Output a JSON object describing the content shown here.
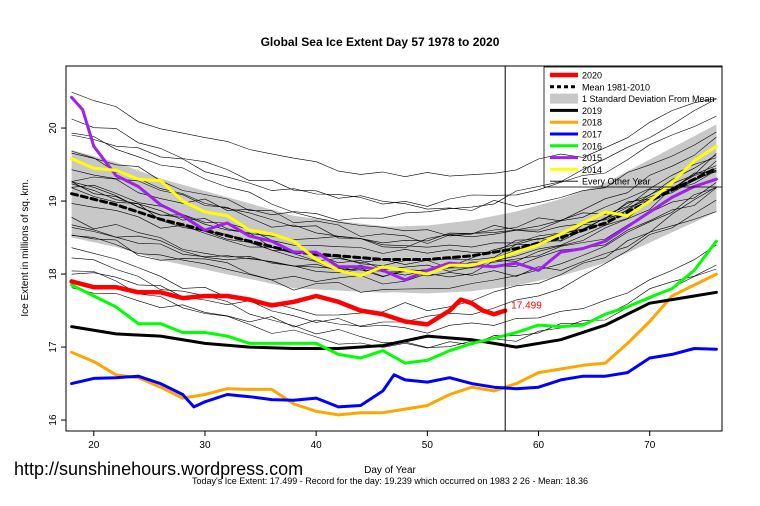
{
  "chart_data": {
    "type": "line",
    "title": "Global Sea Ice Extent Day 57 1978 to 2020",
    "xlabel": "Day of Year",
    "ylabel": "Ice Extent in millions of sq. km.",
    "xlim": [
      17.5,
      76.5
    ],
    "ylim": [
      15.85,
      20.85
    ],
    "xticks": [
      20,
      30,
      40,
      50,
      60,
      70
    ],
    "yticks": [
      16,
      17,
      18,
      19,
      20
    ],
    "vline_day": 57,
    "current_value_label": "17.499",
    "legend_position": "top-right",
    "legend": [
      {
        "label": "2020",
        "color": "#ff0000",
        "style": "solid-thick"
      },
      {
        "label": "Mean 1981-2010",
        "color": "#000000",
        "style": "dashed"
      },
      {
        "label": "1 Standard Deviation From Mean",
        "color": "#c8c8c8",
        "style": "band"
      },
      {
        "label": "2019",
        "color": "#000000",
        "style": "solid"
      },
      {
        "label": "2018",
        "color": "#ffa500",
        "style": "solid"
      },
      {
        "label": "2017",
        "color": "#0000ff",
        "style": "solid"
      },
      {
        "label": "2016",
        "color": "#00ff00",
        "style": "solid"
      },
      {
        "label": "2015",
        "color": "#a020f0",
        "style": "solid"
      },
      {
        "label": "2014",
        "color": "#ffff00",
        "style": "solid"
      },
      {
        "label": "Every Other Year",
        "color": "#000000",
        "style": "thin"
      }
    ],
    "series": [
      {
        "name": "2020",
        "color": "#ff0000",
        "width": 4.5,
        "points": [
          [
            18,
            17.9
          ],
          [
            20,
            17.82
          ],
          [
            22,
            17.82
          ],
          [
            24,
            17.75
          ],
          [
            26,
            17.75
          ],
          [
            28,
            17.67
          ],
          [
            30,
            17.7
          ],
          [
            32,
            17.7
          ],
          [
            34,
            17.65
          ],
          [
            36,
            17.57
          ],
          [
            38,
            17.62
          ],
          [
            40,
            17.7
          ],
          [
            42,
            17.62
          ],
          [
            44,
            17.5
          ],
          [
            46,
            17.45
          ],
          [
            48,
            17.35
          ],
          [
            50,
            17.31
          ],
          [
            52,
            17.5
          ],
          [
            53,
            17.65
          ],
          [
            54,
            17.6
          ],
          [
            55,
            17.5
          ],
          [
            56,
            17.45
          ],
          [
            57,
            17.499
          ]
        ]
      },
      {
        "name": "Mean 1981-2010",
        "color": "#000000",
        "width": 3,
        "dash": "6,4",
        "points": [
          [
            18,
            19.1
          ],
          [
            22,
            18.95
          ],
          [
            26,
            18.75
          ],
          [
            30,
            18.6
          ],
          [
            34,
            18.45
          ],
          [
            38,
            18.3
          ],
          [
            42,
            18.25
          ],
          [
            46,
            18.2
          ],
          [
            50,
            18.2
          ],
          [
            54,
            18.25
          ],
          [
            58,
            18.35
          ],
          [
            62,
            18.5
          ],
          [
            66,
            18.7
          ],
          [
            70,
            19.0
          ],
          [
            74,
            19.3
          ],
          [
            76,
            19.45
          ]
        ]
      },
      {
        "name": "2019",
        "color": "#000000",
        "width": 3,
        "points": [
          [
            18,
            17.28
          ],
          [
            22,
            17.18
          ],
          [
            26,
            17.15
          ],
          [
            30,
            17.05
          ],
          [
            34,
            17.0
          ],
          [
            38,
            16.98
          ],
          [
            42,
            16.98
          ],
          [
            46,
            17.02
          ],
          [
            50,
            17.15
          ],
          [
            54,
            17.1
          ],
          [
            56,
            17.05
          ],
          [
            58,
            17.0
          ],
          [
            62,
            17.1
          ],
          [
            66,
            17.3
          ],
          [
            70,
            17.6
          ],
          [
            72,
            17.65
          ],
          [
            74,
            17.7
          ],
          [
            76,
            17.75
          ]
        ]
      },
      {
        "name": "2018",
        "color": "#ffa500",
        "width": 3,
        "points": [
          [
            18,
            16.93
          ],
          [
            20,
            16.8
          ],
          [
            22,
            16.62
          ],
          [
            24,
            16.58
          ],
          [
            26,
            16.45
          ],
          [
            28,
            16.3
          ],
          [
            30,
            16.35
          ],
          [
            32,
            16.43
          ],
          [
            34,
            16.42
          ],
          [
            36,
            16.42
          ],
          [
            38,
            16.22
          ],
          [
            40,
            16.12
          ],
          [
            42,
            16.07
          ],
          [
            44,
            16.1
          ],
          [
            46,
            16.1
          ],
          [
            48,
            16.15
          ],
          [
            50,
            16.2
          ],
          [
            52,
            16.35
          ],
          [
            54,
            16.45
          ],
          [
            56,
            16.4
          ],
          [
            58,
            16.5
          ],
          [
            60,
            16.65
          ],
          [
            62,
            16.7
          ],
          [
            64,
            16.75
          ],
          [
            66,
            16.78
          ],
          [
            68,
            17.05
          ],
          [
            70,
            17.35
          ],
          [
            72,
            17.7
          ],
          [
            74,
            17.85
          ],
          [
            76,
            18.0
          ]
        ]
      },
      {
        "name": "2017",
        "color": "#0000ff",
        "width": 3,
        "points": [
          [
            18,
            16.5
          ],
          [
            20,
            16.57
          ],
          [
            22,
            16.58
          ],
          [
            24,
            16.6
          ],
          [
            26,
            16.5
          ],
          [
            28,
            16.35
          ],
          [
            29,
            16.18
          ],
          [
            30,
            16.25
          ],
          [
            32,
            16.35
          ],
          [
            34,
            16.32
          ],
          [
            36,
            16.28
          ],
          [
            38,
            16.27
          ],
          [
            40,
            16.3
          ],
          [
            42,
            16.18
          ],
          [
            44,
            16.2
          ],
          [
            46,
            16.4
          ],
          [
            47,
            16.62
          ],
          [
            48,
            16.55
          ],
          [
            50,
            16.52
          ],
          [
            52,
            16.58
          ],
          [
            54,
            16.5
          ],
          [
            56,
            16.45
          ],
          [
            58,
            16.43
          ],
          [
            60,
            16.45
          ],
          [
            62,
            16.55
          ],
          [
            64,
            16.6
          ],
          [
            66,
            16.6
          ],
          [
            68,
            16.65
          ],
          [
            70,
            16.85
          ],
          [
            72,
            16.9
          ],
          [
            74,
            16.98
          ],
          [
            76,
            16.97
          ]
        ]
      },
      {
        "name": "2016",
        "color": "#00ff00",
        "width": 3,
        "points": [
          [
            18,
            17.85
          ],
          [
            20,
            17.7
          ],
          [
            22,
            17.55
          ],
          [
            24,
            17.32
          ],
          [
            26,
            17.32
          ],
          [
            28,
            17.2
          ],
          [
            30,
            17.2
          ],
          [
            32,
            17.15
          ],
          [
            34,
            17.05
          ],
          [
            36,
            17.05
          ],
          [
            38,
            17.05
          ],
          [
            40,
            17.05
          ],
          [
            42,
            16.9
          ],
          [
            44,
            16.85
          ],
          [
            46,
            16.95
          ],
          [
            48,
            16.78
          ],
          [
            50,
            16.82
          ],
          [
            52,
            16.95
          ],
          [
            54,
            17.05
          ],
          [
            56,
            17.12
          ],
          [
            58,
            17.2
          ],
          [
            60,
            17.3
          ],
          [
            62,
            17.28
          ],
          [
            64,
            17.3
          ],
          [
            66,
            17.45
          ],
          [
            68,
            17.55
          ],
          [
            70,
            17.68
          ],
          [
            72,
            17.8
          ],
          [
            74,
            18.05
          ],
          [
            76,
            18.45
          ]
        ]
      },
      {
        "name": "2015",
        "color": "#a020f0",
        "width": 3,
        "points": [
          [
            18,
            20.42
          ],
          [
            19,
            20.25
          ],
          [
            20,
            19.75
          ],
          [
            22,
            19.35
          ],
          [
            24,
            19.2
          ],
          [
            26,
            18.95
          ],
          [
            28,
            18.8
          ],
          [
            30,
            18.6
          ],
          [
            32,
            18.7
          ],
          [
            34,
            18.52
          ],
          [
            36,
            18.45
          ],
          [
            38,
            18.3
          ],
          [
            40,
            18.3
          ],
          [
            42,
            18.1
          ],
          [
            44,
            18.1
          ],
          [
            46,
            18.05
          ],
          [
            48,
            17.92
          ],
          [
            50,
            18.05
          ],
          [
            52,
            18.15
          ],
          [
            54,
            18.12
          ],
          [
            56,
            18.1
          ],
          [
            58,
            18.15
          ],
          [
            60,
            18.05
          ],
          [
            62,
            18.3
          ],
          [
            64,
            18.35
          ],
          [
            66,
            18.45
          ],
          [
            68,
            18.65
          ],
          [
            70,
            18.85
          ],
          [
            72,
            19.05
          ],
          [
            74,
            19.2
          ],
          [
            76,
            19.3
          ]
        ]
      },
      {
        "name": "2014",
        "color": "#ffff00",
        "width": 3,
        "points": [
          [
            18,
            19.58
          ],
          [
            20,
            19.45
          ],
          [
            22,
            19.42
          ],
          [
            24,
            19.3
          ],
          [
            26,
            19.28
          ],
          [
            28,
            19.0
          ],
          [
            30,
            18.85
          ],
          [
            32,
            18.8
          ],
          [
            34,
            18.6
          ],
          [
            36,
            18.55
          ],
          [
            38,
            18.45
          ],
          [
            40,
            18.2
          ],
          [
            42,
            18.05
          ],
          [
            44,
            17.98
          ],
          [
            46,
            18.1
          ],
          [
            48,
            18.05
          ],
          [
            50,
            18.0
          ],
          [
            52,
            18.12
          ],
          [
            54,
            18.12
          ],
          [
            56,
            18.2
          ],
          [
            58,
            18.3
          ],
          [
            60,
            18.4
          ],
          [
            62,
            18.55
          ],
          [
            64,
            18.7
          ],
          [
            66,
            18.85
          ],
          [
            68,
            18.8
          ],
          [
            70,
            19.0
          ],
          [
            72,
            19.25
          ],
          [
            74,
            19.55
          ],
          [
            76,
            19.75
          ]
        ]
      }
    ]
  },
  "footer": {
    "url": "http://sunshinehours.wordpress.com",
    "summary": "Today's Ice Extent: 17.499  - Record for the day: 19.239 which occurred on 1983 2 26  - Mean: 18.36"
  }
}
